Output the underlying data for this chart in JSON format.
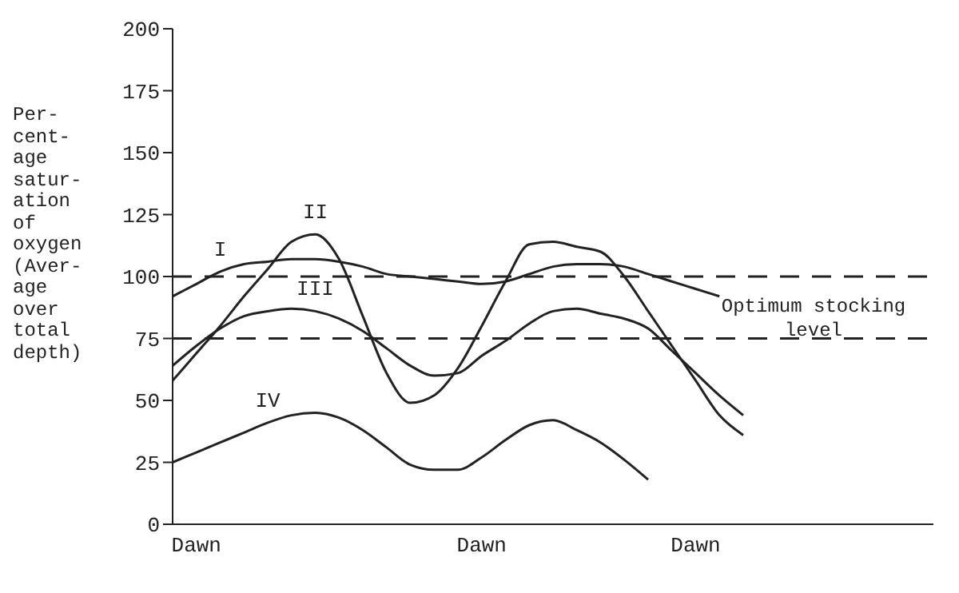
{
  "chart_data": {
    "type": "line",
    "ylabel": "Per-\ncent-\nage\nsatur-\nation\nof\noxygen\n(Aver-\nage\nover\ntotal\ndepth)",
    "categories": [
      null,
      "Dawn",
      null,
      null,
      null,
      null,
      null,
      null,
      null,
      null,
      null,
      null,
      null,
      "Dawn",
      null,
      null,
      null,
      null,
      null,
      null,
      null,
      null,
      "Dawn",
      null,
      null,
      null,
      null,
      null,
      null,
      null,
      null,
      null,
      null
    ],
    "ylim": [
      0,
      200
    ],
    "yticks": [
      0,
      25,
      50,
      75,
      100,
      125,
      150,
      175,
      200
    ],
    "series": [
      {
        "name": "I",
        "color": "#222222",
        "values": [
          92,
          97,
          102,
          105,
          106,
          107,
          107,
          106,
          104,
          101,
          100,
          99,
          98,
          97,
          98,
          101,
          104,
          105,
          105,
          104,
          101,
          98,
          95,
          92,
          null,
          null,
          null,
          null,
          null,
          null,
          null,
          null,
          null
        ]
      },
      {
        "name": "II",
        "color": "#222222",
        "values": [
          58,
          69,
          80,
          92,
          103,
          114,
          117,
          107,
          84,
          61,
          49,
          52,
          63,
          80,
          98,
          113,
          114,
          112,
          110,
          100,
          86,
          72,
          58,
          44,
          36,
          null,
          null,
          null,
          null,
          null,
          null,
          null,
          null
        ]
      },
      {
        "name": "III",
        "color": "#222222",
        "values": [
          64,
          72,
          79,
          84,
          86,
          87,
          86,
          83,
          78,
          71,
          64,
          60,
          61,
          68,
          74,
          81,
          86,
          87,
          85,
          83,
          79,
          70,
          61,
          52,
          44,
          null,
          null,
          null,
          null,
          null,
          null,
          null,
          null
        ]
      },
      {
        "name": "IV",
        "color": "#222222",
        "values": [
          25,
          29,
          33,
          37,
          41,
          44,
          45,
          43,
          38,
          31,
          24,
          22,
          22,
          27,
          34,
          40,
          42,
          38,
          33,
          26,
          18,
          null,
          null,
          null,
          null,
          null,
          null,
          null,
          null,
          null,
          null,
          null,
          null
        ]
      }
    ],
    "ref_lines": [
      {
        "axis": "y",
        "value": 100,
        "color": "#222222",
        "line_style": "dashed"
      },
      {
        "axis": "y",
        "value": 75,
        "color": "#222222",
        "line_style": "dashed"
      }
    ],
    "annotations": [
      "Optimum stocking level"
    ],
    "marker": "none",
    "line_style": "solid"
  }
}
